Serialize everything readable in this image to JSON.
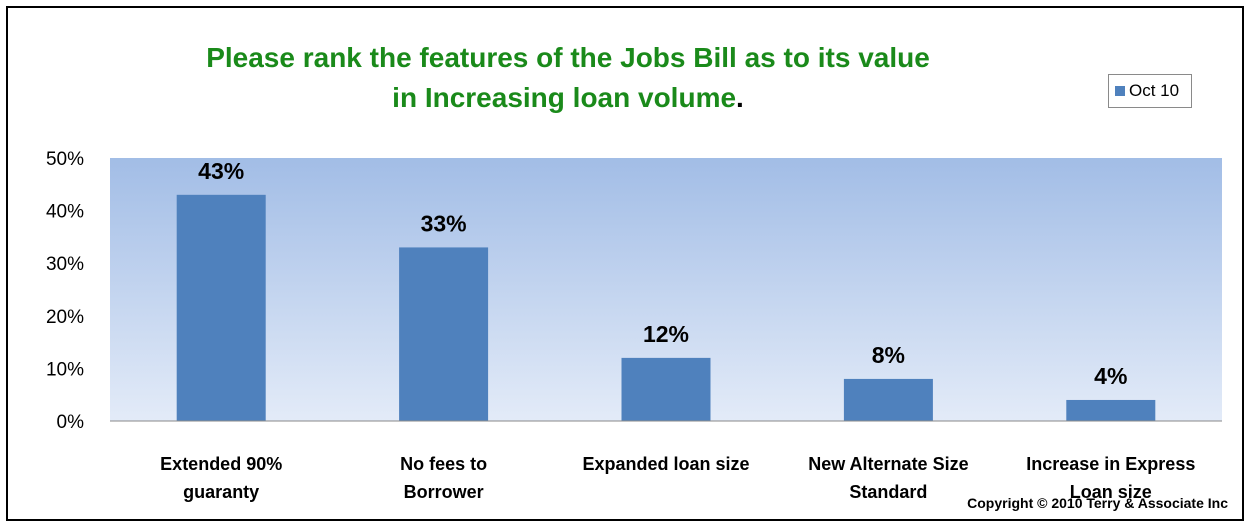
{
  "chart_data": {
    "type": "bar",
    "title_line1": "Please rank the features of the Jobs Bill as to its value",
    "title_line2": "in Increasing loan volume",
    "title_period": ".",
    "categories": [
      [
        "Extended 90%",
        "guaranty"
      ],
      [
        "No fees to",
        "Borrower"
      ],
      [
        "Expanded loan size"
      ],
      [
        "New Alternate Size",
        "Standard"
      ],
      [
        "Increase in Express",
        "Loan size"
      ]
    ],
    "series": [
      {
        "name": "Oct 10",
        "color": "#4f81bd",
        "values": [
          43,
          33,
          12,
          8,
          4
        ],
        "labels": [
          "43%",
          "33%",
          "12%",
          "8%",
          "4%"
        ]
      }
    ],
    "ylim": [
      0,
      50
    ],
    "yticks": [
      0,
      10,
      20,
      30,
      40,
      50
    ],
    "ytick_labels": [
      "0%",
      "10%",
      "20%",
      "30%",
      "40%",
      "50%"
    ],
    "legend_position": "top-right",
    "plot_background": "gradient #a2bde6 to #e3ebf8",
    "grid": false
  },
  "footer": {
    "copyright": "Copyright © 2010 Terry & Associate Inc"
  }
}
